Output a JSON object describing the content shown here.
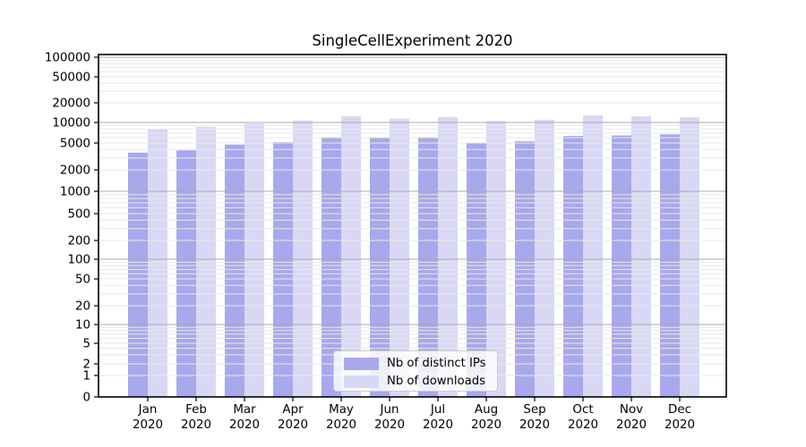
{
  "page": {
    "background": "#ffffff"
  },
  "chart_data": {
    "type": "bar",
    "title": "SingleCellExperiment 2020",
    "categories": [
      "Jan",
      "Feb",
      "Mar",
      "Apr",
      "May",
      "Jun",
      "Jul",
      "Aug",
      "Sep",
      "Oct",
      "Nov",
      "Dec"
    ],
    "x_year_label": "2020",
    "series": [
      {
        "name": "Nb of distinct IPs",
        "color": "#a8a8ec",
        "values": [
          3600,
          3900,
          4750,
          5150,
          6100,
          5950,
          6100,
          5000,
          5300,
          6350,
          6450,
          6700
        ]
      },
      {
        "name": "Nb of downloads",
        "color": "#d8d8f5",
        "values": [
          8100,
          8600,
          9600,
          10750,
          12500,
          11450,
          12100,
          10550,
          11000,
          12800,
          12400,
          12000
        ]
      }
    ],
    "yticks": [
      0,
      1,
      2,
      5,
      10,
      20,
      50,
      100,
      200,
      500,
      1000,
      2000,
      5000,
      10000,
      20000,
      50000,
      100000
    ],
    "yscale": "symlog",
    "ylim": [
      0,
      100000
    ],
    "grid": true,
    "legend_position": "lower center",
    "colors": {
      "major_grid": "#ababab",
      "minor_grid": "#e8e8e8",
      "axis": "#000000",
      "tick_text": "#000000"
    }
  }
}
